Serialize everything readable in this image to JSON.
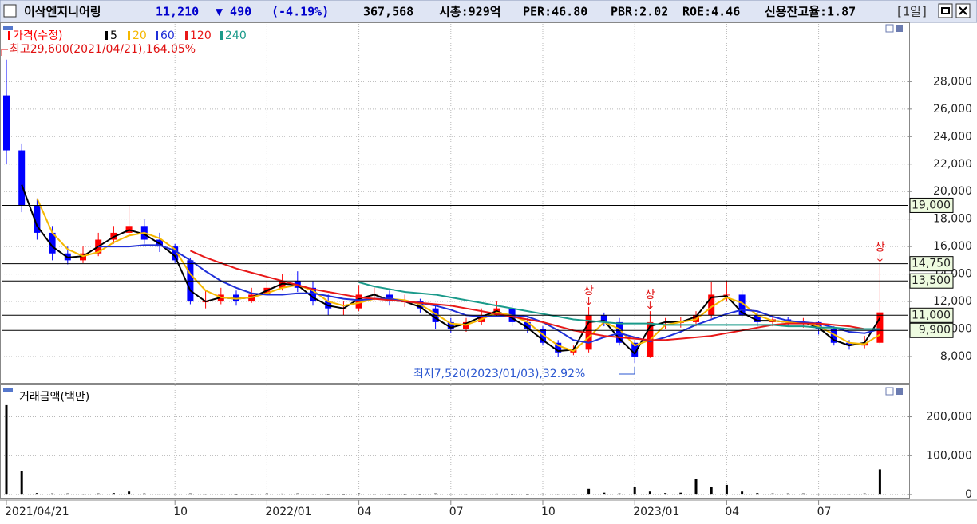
{
  "header": {
    "name": "이삭엔지니어링",
    "price": "11,210",
    "change": "▼ 490",
    "change_pct": "(-4.19%)",
    "volume": "367,568",
    "market_cap": "시총:929억",
    "per": "PER:46.80",
    "pbr": "PBR:2.02",
    "roe": "ROE:4.46",
    "credit": "신용잔고율:1.87",
    "period": "[1일]"
  },
  "chart_data": [
    {
      "type": "candlestick",
      "price_name": "가격(수정)",
      "up_color": "#ff0000",
      "down_color": "#0000ff",
      "categories": [
        "2021/04/21",
        null,
        null,
        null,
        null,
        null,
        null,
        null,
        null,
        null,
        null,
        "10",
        null,
        null,
        null,
        null,
        null,
        "2022/01",
        null,
        null,
        null,
        null,
        null,
        "04",
        null,
        null,
        null,
        null,
        null,
        "07",
        null,
        null,
        null,
        null,
        null,
        "10",
        null,
        null,
        null,
        null,
        null,
        "2023/01",
        null,
        null,
        null,
        null,
        null,
        "04",
        null,
        null,
        null,
        null,
        null,
        "07",
        null,
        null,
        null,
        null
      ],
      "open": [
        27000,
        23000,
        19000,
        17000,
        15500,
        15000,
        15500,
        16500,
        17000,
        17500,
        16500,
        16000,
        15000,
        12000,
        12000,
        12500,
        12000,
        12500,
        13000,
        13500,
        13000,
        12000,
        11500,
        11500,
        12500,
        12500,
        12000,
        12000,
        11500,
        10500,
        10000,
        10500,
        11000,
        11500,
        10500,
        10000,
        9000,
        8300,
        8500,
        11000,
        10500,
        9000,
        8000,
        10500,
        10500,
        10500,
        11000,
        12500,
        12500,
        11000,
        10500,
        10700,
        10500,
        10500,
        10000,
        9000,
        8800,
        9000
      ],
      "high": [
        29600,
        23500,
        19500,
        17500,
        16000,
        16000,
        17000,
        17500,
        19000,
        18000,
        17000,
        16200,
        15200,
        12800,
        13000,
        12800,
        13000,
        13500,
        14000,
        14200,
        13500,
        12500,
        12000,
        13200,
        13000,
        12800,
        12500,
        12200,
        11800,
        10800,
        10800,
        11500,
        12000,
        11800,
        10800,
        10200,
        9200,
        8800,
        11600,
        11200,
        10800,
        9200,
        11300,
        10800,
        10900,
        11300,
        13400,
        13500,
        12800,
        11200,
        11000,
        10900,
        10800,
        10600,
        10200,
        9200,
        9500,
        14750
      ],
      "low": [
        22000,
        18500,
        16500,
        15000,
        14700,
        14800,
        15300,
        16200,
        16800,
        16200,
        15600,
        14800,
        11800,
        11500,
        11800,
        11700,
        11900,
        12500,
        12800,
        12700,
        11700,
        11000,
        11000,
        11300,
        12100,
        11700,
        11600,
        11200,
        10000,
        9700,
        9800,
        10300,
        10900,
        10200,
        9700,
        8800,
        8000,
        8100,
        8300,
        10200,
        8800,
        7520,
        7900,
        10000,
        10100,
        10200,
        10800,
        12000,
        10800,
        10200,
        10200,
        10200,
        10100,
        9600,
        8800,
        8500,
        8600,
        8900
      ],
      "close": [
        23000,
        19000,
        17000,
        15500,
        15000,
        15500,
        16500,
        17000,
        17500,
        16500,
        16000,
        15000,
        12000,
        12000,
        12500,
        12000,
        12500,
        13000,
        13500,
        13000,
        12000,
        11500,
        11500,
        12500,
        12500,
        12000,
        12000,
        11500,
        10500,
        10000,
        10500,
        11000,
        11500,
        10500,
        10000,
        9000,
        8300,
        8500,
        11000,
        10500,
        9000,
        8000,
        10500,
        10500,
        10500,
        11000,
        12500,
        12500,
        11000,
        10500,
        10700,
        10500,
        10500,
        10000,
        9000,
        8800,
        9000,
        11210
      ],
      "series": [
        {
          "name": "5",
          "color": "#000000",
          "values": [
            null,
            20500,
            17500,
            16000,
            15200,
            15300,
            16000,
            16700,
            17200,
            16900,
            16200,
            15300,
            12800,
            12000,
            12300,
            12200,
            12300,
            12800,
            13300,
            13200,
            12300,
            11700,
            11500,
            12200,
            12500,
            12100,
            12000,
            11600,
            10800,
            10100,
            10400,
            10900,
            11300,
            10800,
            10100,
            9200,
            8400,
            8500,
            10500,
            10600,
            9300,
            8200,
            10200,
            10500,
            10500,
            10900,
            12300,
            12400,
            11200,
            10600,
            10600,
            10500,
            10500,
            10100,
            9200,
            8800,
            9000,
            10800
          ]
        },
        {
          "name": "20",
          "color": "#f5b800",
          "values": [
            null,
            null,
            19500,
            17000,
            15800,
            15300,
            15600,
            16300,
            16800,
            17000,
            16600,
            15800,
            14000,
            12800,
            12300,
            12200,
            12300,
            12600,
            13000,
            13200,
            12800,
            12000,
            11700,
            11900,
            12200,
            12200,
            12100,
            11800,
            11100,
            10400,
            10300,
            10700,
            11200,
            11000,
            10500,
            9600,
            8800,
            8400,
            9400,
            10500,
            10000,
            8800,
            9200,
            10300,
            10500,
            10700,
            11600,
            12300,
            11900,
            11000,
            10600,
            10500,
            10500,
            10200,
            9600,
            9000,
            8900,
            9600
          ]
        },
        {
          "name": "60",
          "color": "#1f2fd8",
          "values": [
            null,
            null,
            null,
            null,
            null,
            null,
            16000,
            16000,
            16000,
            16100,
            16100,
            15700,
            15000,
            14200,
            13500,
            13000,
            12600,
            12500,
            12500,
            12600,
            12600,
            12400,
            12200,
            12100,
            12200,
            12200,
            12000,
            11900,
            11700,
            11400,
            11000,
            10900,
            10900,
            11000,
            10900,
            10500,
            9900,
            9200,
            9000,
            9400,
            9700,
            9400,
            9100,
            9400,
            9800,
            10300,
            10700,
            11100,
            11400,
            11300,
            10900,
            10600,
            10500,
            10400,
            10100,
            9800,
            9700,
            10000
          ]
        },
        {
          "name": "120",
          "color": "#e81818",
          "values": [
            null,
            null,
            null,
            null,
            null,
            null,
            null,
            null,
            null,
            null,
            null,
            null,
            15700,
            15200,
            14800,
            14400,
            14100,
            13800,
            13500,
            13200,
            12900,
            12700,
            12500,
            12300,
            12200,
            12100,
            12000,
            11900,
            11800,
            11700,
            11500,
            11300,
            11100,
            10900,
            10700,
            10500,
            10200,
            9900,
            9700,
            9500,
            9400,
            9300,
            9200,
            9200,
            9300,
            9400,
            9500,
            9700,
            9900,
            10100,
            10300,
            10400,
            10400,
            10400,
            10300,
            10200,
            10000,
            10000
          ]
        },
        {
          "name": "240",
          "color": "#1a9a8a",
          "values": [
            null,
            null,
            null,
            null,
            null,
            null,
            null,
            null,
            null,
            null,
            null,
            null,
            null,
            null,
            null,
            null,
            null,
            null,
            null,
            null,
            null,
            null,
            null,
            13400,
            13100,
            12900,
            12700,
            12600,
            12500,
            12300,
            12100,
            11900,
            11700,
            11500,
            11300,
            11100,
            10900,
            10700,
            10600,
            10500,
            10400,
            10400,
            10400,
            10300,
            10300,
            10300,
            10300,
            10300,
            10300,
            10300,
            10300,
            10200,
            10200,
            10100,
            10100,
            10000,
            10000,
            10000
          ]
        }
      ],
      "ylim": [
        6200,
        32200
      ],
      "yticks": [
        {
          "value": 8000,
          "label": "8,000"
        },
        {
          "value": 10000,
          "label": "10,000"
        },
        {
          "value": 12000,
          "label": "12,000"
        },
        {
          "value": 14000,
          "label": "14,000"
        },
        {
          "value": 16000,
          "label": "16,000"
        },
        {
          "value": 18000,
          "label": "18,000"
        },
        {
          "value": 20000,
          "label": "20,000"
        },
        {
          "value": 22000,
          "label": "22,000"
        },
        {
          "value": 24000,
          "label": "24,000"
        },
        {
          "value": 26000,
          "label": "26,000"
        },
        {
          "value": 28000,
          "label": "28,000"
        }
      ],
      "grid": true,
      "reference_lines": [
        {
          "value": 19000,
          "label": "19,000"
        },
        {
          "value": 14750,
          "label": "14,750"
        },
        {
          "value": 13500,
          "label": "13,500"
        },
        {
          "value": 11000,
          "label": "11,000"
        },
        {
          "value": 9900,
          "label": "9,900"
        }
      ],
      "annotations": [
        "최고29,600(2021/04/21),164.05%",
        "최저7,520(2023/01/03),32.92%"
      ],
      "markers": [
        "상",
        "상",
        "상"
      ]
    },
    {
      "type": "bar",
      "title": "거래금액(백만)",
      "color": "#000000",
      "values": [
        230000,
        60000,
        4000,
        3000,
        3000,
        2000,
        3000,
        4000,
        8000,
        3000,
        2000,
        2000,
        3000,
        2000,
        2000,
        1500,
        1500,
        3000,
        2500,
        3000,
        2000,
        1500,
        1500,
        3000,
        2000,
        1500,
        1500,
        1500,
        3000,
        2000,
        2000,
        2000,
        2500,
        1500,
        1500,
        2500,
        2000,
        2000,
        15000,
        5000,
        3000,
        20000,
        8000,
        4000,
        5000,
        40000,
        20000,
        25000,
        8000,
        4000,
        3000,
        3000,
        3000,
        2000,
        2000,
        2000,
        3000,
        65000
      ],
      "ylim": [
        -10000,
        279000
      ],
      "yticks": [
        0,
        {
          "value": 100000,
          "label": "100,000"
        },
        {
          "value": 200000,
          "label": "200,000"
        }
      ],
      "grid": true
    }
  ]
}
